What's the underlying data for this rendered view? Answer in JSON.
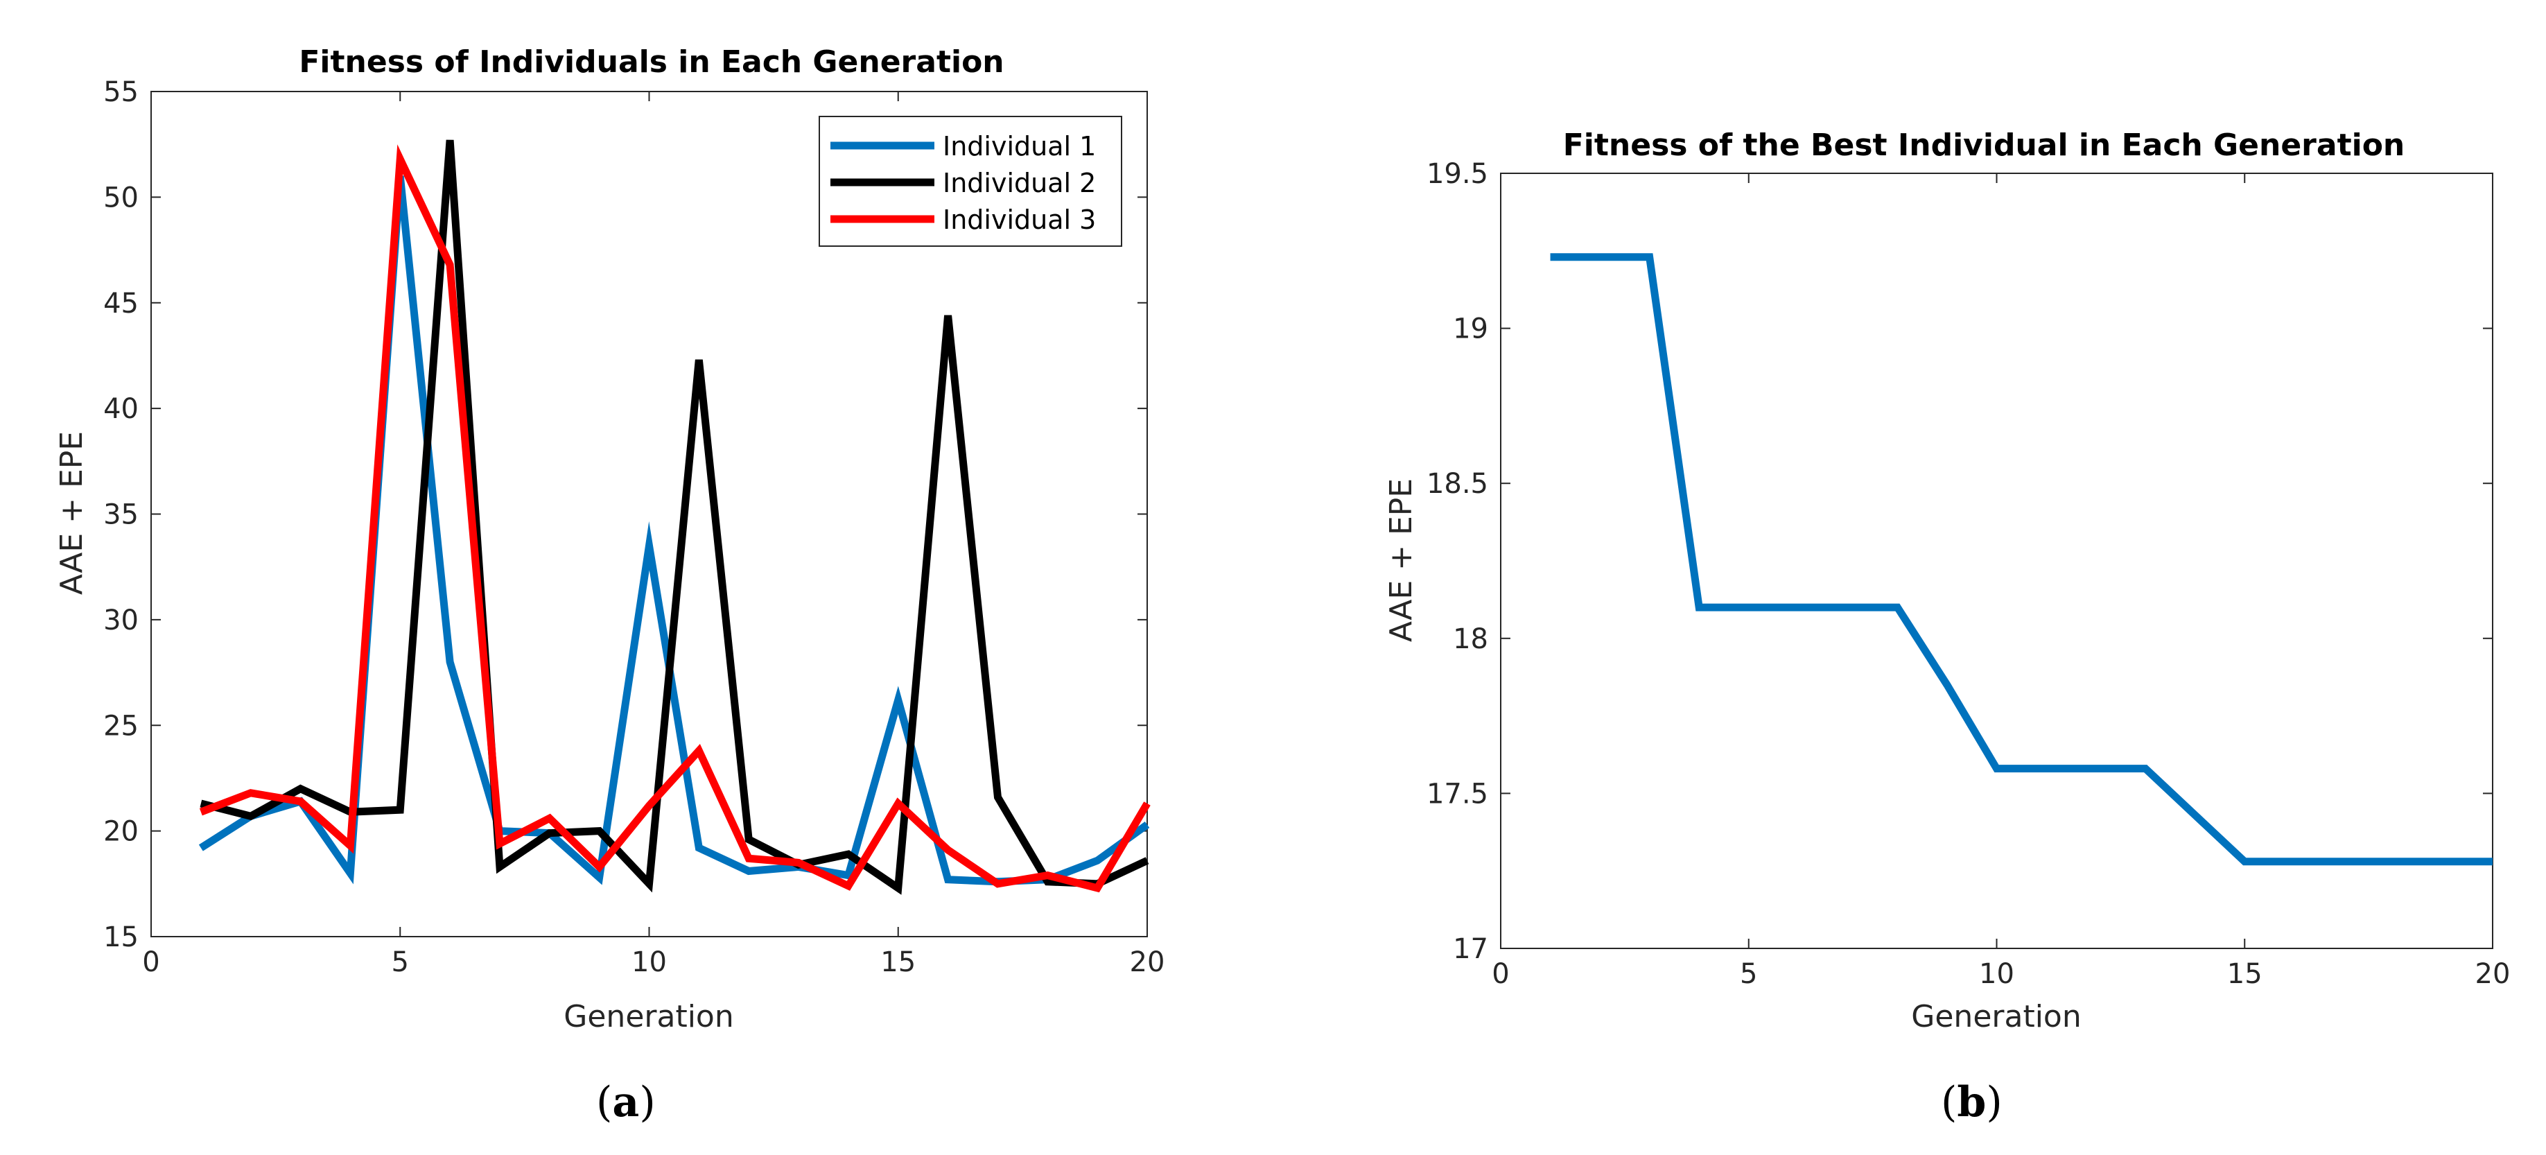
{
  "chart_data": [
    {
      "type": "line",
      "title": "Fitness of Individuals in Each Generation",
      "xlabel": "Generation",
      "ylabel": "AAE + EPE",
      "xlim": [
        0,
        20
      ],
      "ylim": [
        15,
        55
      ],
      "xticks": [
        0,
        5,
        10,
        15,
        20
      ],
      "yticks": [
        15,
        20,
        25,
        30,
        35,
        40,
        45,
        50,
        55
      ],
      "legend_position": "top-right",
      "x": [
        1,
        2,
        3,
        4,
        5,
        6,
        7,
        8,
        9,
        10,
        11,
        12,
        13,
        14,
        15,
        16,
        17,
        18,
        19,
        20
      ],
      "series": [
        {
          "name": "Individual 1",
          "color": "#0072BD",
          "values": [
            19.2,
            20.7,
            21.4,
            18.0,
            51.0,
            28.0,
            20.0,
            19.9,
            17.8,
            33.5,
            19.2,
            18.1,
            18.3,
            17.9,
            26.2,
            17.7,
            17.6,
            17.7,
            18.6,
            20.3
          ]
        },
        {
          "name": "Individual 2",
          "color": "#000000",
          "values": [
            21.3,
            20.7,
            22.0,
            20.9,
            21.0,
            52.7,
            18.3,
            19.9,
            20.0,
            17.5,
            42.3,
            19.6,
            18.4,
            18.9,
            17.3,
            44.4,
            21.6,
            17.6,
            17.5,
            18.6
          ]
        },
        {
          "name": "Individual 3",
          "color": "#FF0000",
          "values": [
            20.9,
            21.8,
            21.4,
            19.3,
            51.8,
            46.8,
            19.4,
            20.6,
            18.3,
            21.2,
            23.8,
            18.7,
            18.5,
            17.4,
            21.3,
            19.1,
            17.5,
            17.9,
            17.3,
            21.3
          ]
        }
      ]
    },
    {
      "type": "line",
      "title": "Fitness of the Best Individual in Each Generation",
      "xlabel": "Generation",
      "ylabel": "AAE + EPE",
      "xlim": [
        0,
        20
      ],
      "ylim": [
        17,
        19.5
      ],
      "xticks": [
        0,
        5,
        10,
        15,
        20
      ],
      "yticks": [
        17,
        17.5,
        18,
        18.5,
        19,
        19.5
      ],
      "x": [
        1,
        2,
        3,
        4,
        5,
        6,
        7,
        8,
        9,
        10,
        11,
        12,
        13,
        14,
        15,
        16,
        17,
        18,
        19,
        20
      ],
      "series": [
        {
          "name": "Best Individual",
          "color": "#0072BD",
          "values": [
            19.23,
            19.23,
            19.23,
            18.1,
            18.1,
            18.1,
            18.1,
            18.1,
            17.85,
            17.58,
            17.58,
            17.58,
            17.58,
            17.43,
            17.28,
            17.28,
            17.28,
            17.28,
            17.28,
            17.28
          ]
        }
      ]
    }
  ],
  "captions": {
    "a": "a",
    "b": "b"
  }
}
